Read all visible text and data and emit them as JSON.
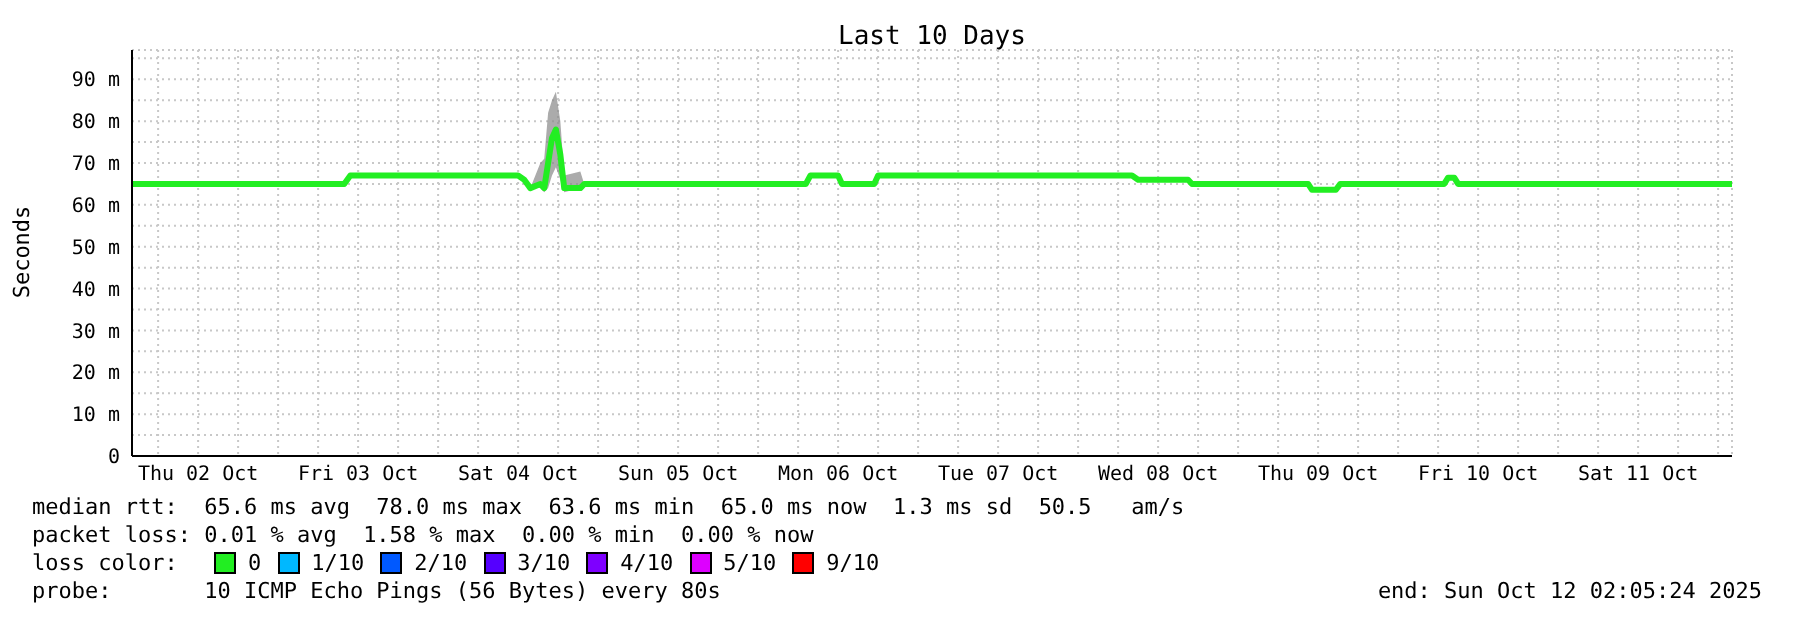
{
  "chart_data": {
    "type": "line",
    "title": "Last 10 Days",
    "ylabel": "Seconds",
    "legend_title": "loss color:",
    "legend": "bottom",
    "grid": true,
    "xlim": [
      "2025-10-02T02:05",
      "2025-10-12T02:05"
    ],
    "xticks": [
      {
        "value": "2025-10-02T06:00",
        "label": null
      },
      {
        "value": "2025-10-02T12:00",
        "label": "Thu 02 Oct"
      },
      {
        "value": "2025-10-02T18:00",
        "label": null
      },
      {
        "value": "2025-10-03T00:00",
        "label": null
      },
      {
        "value": "2025-10-03T06:00",
        "label": null
      },
      {
        "value": "2025-10-03T12:00",
        "label": "Fri 03 Oct"
      },
      {
        "value": "2025-10-03T18:00",
        "label": null
      },
      {
        "value": "2025-10-04T00:00",
        "label": null
      },
      {
        "value": "2025-10-04T06:00",
        "label": null
      },
      {
        "value": "2025-10-04T12:00",
        "label": "Sat 04 Oct"
      },
      {
        "value": "2025-10-04T18:00",
        "label": null
      },
      {
        "value": "2025-10-05T00:00",
        "label": null
      },
      {
        "value": "2025-10-05T06:00",
        "label": null
      },
      {
        "value": "2025-10-05T12:00",
        "label": "Sun 05 Oct"
      },
      {
        "value": "2025-10-05T18:00",
        "label": null
      },
      {
        "value": "2025-10-06T00:00",
        "label": null
      },
      {
        "value": "2025-10-06T06:00",
        "label": null
      },
      {
        "value": "2025-10-06T12:00",
        "label": "Mon 06 Oct"
      },
      {
        "value": "2025-10-06T18:00",
        "label": null
      },
      {
        "value": "2025-10-07T00:00",
        "label": null
      },
      {
        "value": "2025-10-07T06:00",
        "label": null
      },
      {
        "value": "2025-10-07T12:00",
        "label": "Tue 07 Oct"
      },
      {
        "value": "2025-10-07T18:00",
        "label": null
      },
      {
        "value": "2025-10-08T00:00",
        "label": null
      },
      {
        "value": "2025-10-08T06:00",
        "label": null
      },
      {
        "value": "2025-10-08T12:00",
        "label": "Wed 08 Oct"
      },
      {
        "value": "2025-10-08T18:00",
        "label": null
      },
      {
        "value": "2025-10-09T00:00",
        "label": null
      },
      {
        "value": "2025-10-09T06:00",
        "label": null
      },
      {
        "value": "2025-10-09T12:00",
        "label": "Thu 09 Oct"
      },
      {
        "value": "2025-10-09T18:00",
        "label": null
      },
      {
        "value": "2025-10-10T00:00",
        "label": null
      },
      {
        "value": "2025-10-10T06:00",
        "label": null
      },
      {
        "value": "2025-10-10T12:00",
        "label": "Fri 10 Oct"
      },
      {
        "value": "2025-10-10T18:00",
        "label": null
      },
      {
        "value": "2025-10-11T00:00",
        "label": null
      },
      {
        "value": "2025-10-11T06:00",
        "label": null
      },
      {
        "value": "2025-10-11T12:00",
        "label": "Sat 11 Oct"
      },
      {
        "value": "2025-10-11T18:00",
        "label": null
      },
      {
        "value": "2025-10-12T00:00",
        "label": null
      }
    ],
    "ylim": [
      0,
      97
    ],
    "yticks": [
      0,
      {
        "value": 5,
        "label": null
      },
      {
        "value": 10,
        "label": "10 m"
      },
      {
        "value": 15,
        "label": null
      },
      {
        "value": 20,
        "label": "20 m"
      },
      {
        "value": 25,
        "label": null
      },
      {
        "value": 30,
        "label": "30 m"
      },
      {
        "value": 35,
        "label": null
      },
      {
        "value": 40,
        "label": "40 m"
      },
      {
        "value": 45,
        "label": null
      },
      {
        "value": 50,
        "label": "50 m"
      },
      {
        "value": 55,
        "label": null
      },
      {
        "value": 60,
        "label": "60 m"
      },
      {
        "value": 65,
        "label": null
      },
      {
        "value": 70,
        "label": "70 m"
      },
      {
        "value": 75,
        "label": null
      },
      {
        "value": 80,
        "label": "80 m"
      },
      {
        "value": 85,
        "label": null
      },
      {
        "value": 90,
        "label": "90 m"
      },
      {
        "value": 95,
        "label": null
      }
    ],
    "series": [
      {
        "name": "0",
        "color": "#22ee22",
        "x": [
          "2025-10-02T02:05",
          "2025-10-03T09:55",
          "2025-10-03T10:50",
          "2025-10-04T12:00",
          "2025-10-04T12:55",
          "2025-10-04T13:50",
          "2025-10-04T15:20",
          "2025-10-04T15:55",
          "2025-10-04T16:30",
          "2025-10-04T17:05",
          "2025-10-04T17:40",
          "2025-10-04T18:20",
          "2025-10-04T18:55",
          "2025-10-04T21:20",
          "2025-10-04T21:55",
          "2025-10-06T07:10",
          "2025-10-06T07:50",
          "2025-10-06T12:00",
          "2025-10-06T12:35",
          "2025-10-06T17:25",
          "2025-10-06T18:00",
          "2025-10-08T08:05",
          "2025-10-08T09:00",
          "2025-10-08T16:30",
          "2025-10-08T17:05",
          "2025-10-09T10:30",
          "2025-10-09T11:05",
          "2025-10-09T14:40",
          "2025-10-09T15:20",
          "2025-10-10T06:55",
          "2025-10-10T07:30",
          "2025-10-10T08:25",
          "2025-10-10T09:00",
          "2025-10-12T02:05"
        ],
        "values": [
          65,
          65,
          67,
          67,
          66,
          64,
          65,
          64,
          70,
          76,
          78,
          72,
          64,
          64,
          65,
          65,
          67,
          67,
          65,
          65,
          67,
          67,
          66,
          66,
          65,
          65,
          63.6,
          63.6,
          65,
          65,
          66.5,
          66.5,
          65,
          65
        ],
        "lower": [
          65,
          65,
          67,
          67,
          66,
          64,
          64,
          63,
          64,
          67,
          69,
          66,
          63,
          64,
          65,
          65,
          67,
          67,
          65,
          65,
          67,
          67,
          66,
          66,
          65,
          65,
          63.6,
          63.6,
          65,
          65,
          66.5,
          66.5,
          65,
          65
        ],
        "upper": [
          65,
          65,
          67,
          67,
          66,
          64,
          70,
          71,
          82,
          85,
          87,
          80,
          67,
          68,
          65,
          65,
          67,
          67,
          65,
          65,
          67,
          67,
          66,
          66,
          65,
          65,
          63.6,
          63.6,
          65,
          65,
          66.5,
          66.5,
          65,
          65
        ]
      },
      {
        "name": "1/10",
        "color": "#00b8ff"
      },
      {
        "name": "2/10",
        "color": "#0059ff"
      },
      {
        "name": "3/10",
        "color": "#5500ff"
      },
      {
        "name": "4/10",
        "color": "#7e00ff"
      },
      {
        "name": "5/10",
        "color": "#dd00ff"
      },
      {
        "name": "9/10",
        "color": "#ff0000"
      }
    ],
    "annotations": [
      "median rtt:  65.6 ms avg  78.0 ms max  63.6 ms min  65.0 ms now  1.3 ms sd  50.5   am/s",
      "packet loss: 0.01 % avg  1.58 % max  0.00 % min  0.00 % now",
      "probe:       10 ICMP Echo Pings (56 Bytes) every 80s",
      "end: Sun Oct 12 02:05:24 2025"
    ]
  }
}
